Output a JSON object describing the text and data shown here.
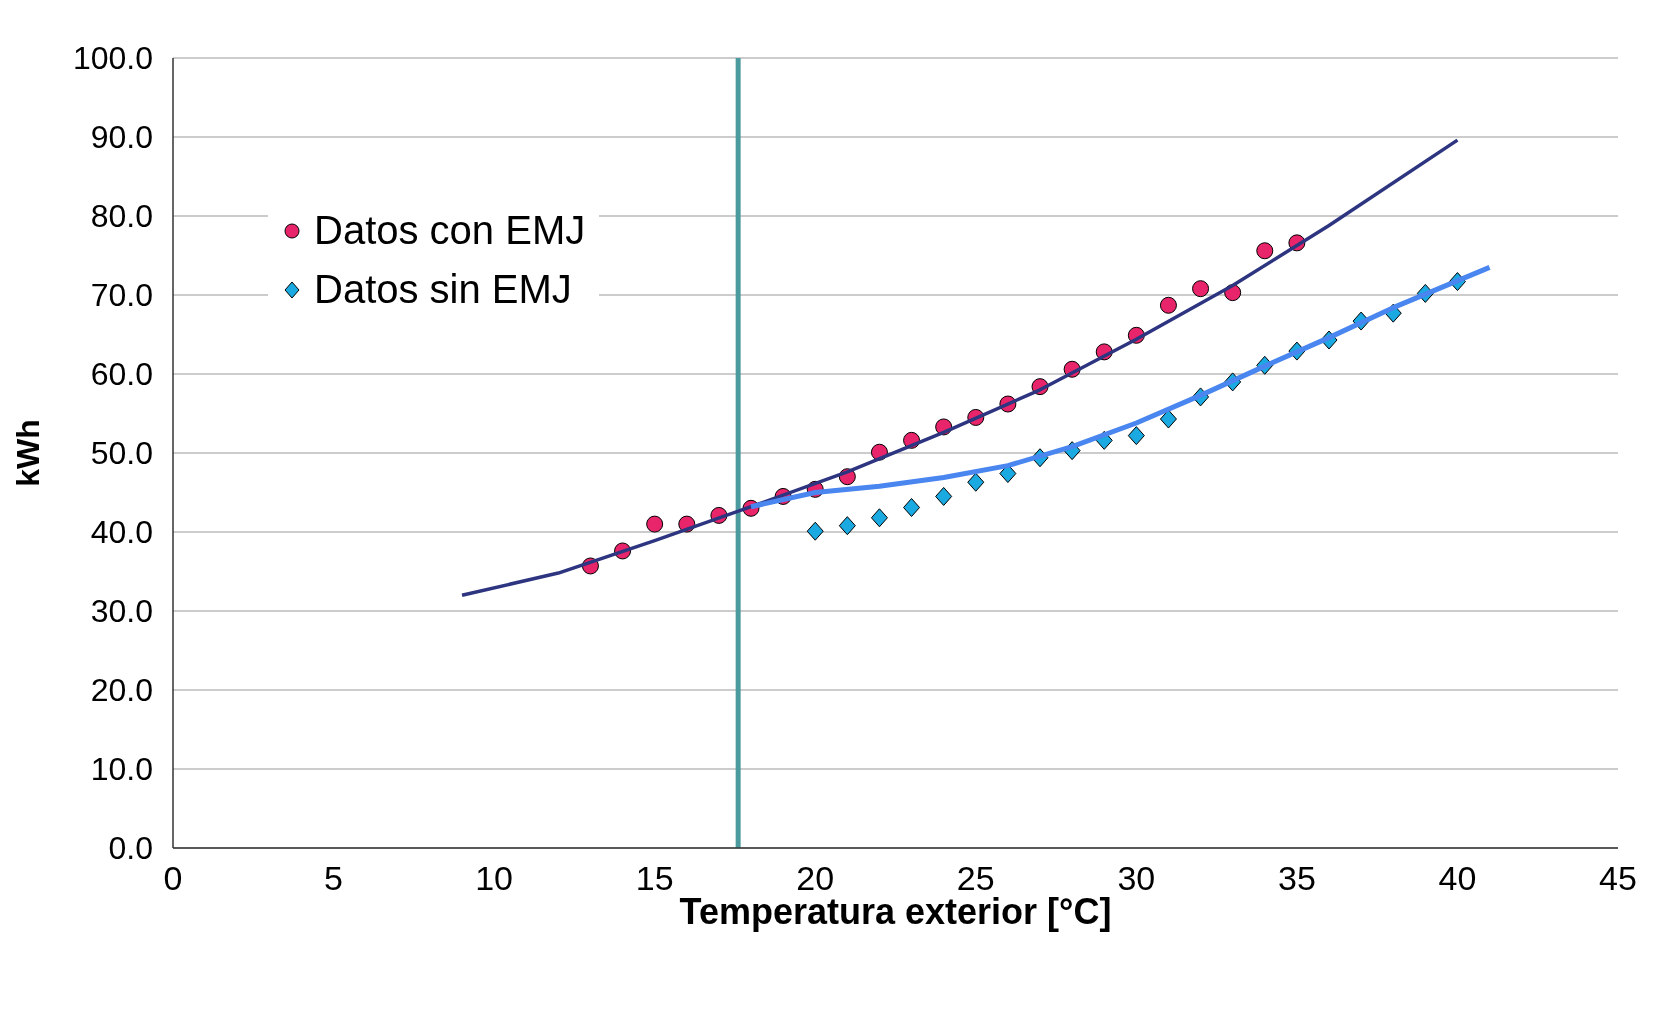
{
  "chart_data": {
    "type": "scatter",
    "xlabel": "Temperatura exterior [°C]",
    "ylabel": "kWh",
    "xlim": [
      0,
      45
    ],
    "xticks": [
      0,
      5,
      10,
      15,
      20,
      25,
      30,
      35,
      40,
      45
    ],
    "ylim": [
      0,
      100
    ],
    "yticks": [
      {
        "value": 0,
        "label": "0.0"
      },
      {
        "value": 10,
        "label": "10.0"
      },
      {
        "value": 20,
        "label": "20.0"
      },
      {
        "value": 30,
        "label": "30.0"
      },
      {
        "value": 40,
        "label": "40.0"
      },
      {
        "value": 50,
        "label": "50.0"
      },
      {
        "value": 60,
        "label": "60.0"
      },
      {
        "value": 70,
        "label": "70.0"
      },
      {
        "value": 80,
        "label": "80.0"
      },
      {
        "value": 90,
        "label": "90.0"
      },
      {
        "value": 100,
        "label": "100.0"
      }
    ],
    "grid": "y",
    "legend": "top left",
    "ref_lines": [
      {
        "axis": "x",
        "value": 17.6,
        "color": "#4a9a9e"
      }
    ],
    "series": [
      {
        "type": "line",
        "color": "#2e3580",
        "marker": "none",
        "x": [
          9,
          12,
          15,
          18,
          21,
          24,
          27,
          30,
          33,
          36,
          40
        ],
        "values": [
          32.0,
          34.8,
          38.9,
          43.2,
          47.6,
          52.6,
          58.0,
          64.4,
          71.2,
          78.8,
          89.6
        ]
      },
      {
        "type": "line",
        "color": "#4a86f0",
        "marker": "none",
        "x": [
          18,
          20,
          22,
          24,
          26,
          28,
          30,
          32,
          34,
          36,
          38,
          41
        ],
        "values": [
          43.2,
          45.0,
          45.8,
          46.9,
          48.4,
          50.8,
          53.8,
          57.3,
          61.0,
          64.6,
          68.4,
          73.5
        ]
      },
      {
        "name": "Datos con EMJ",
        "color": "#e8246a",
        "marker": "circle",
        "x": [
          13,
          14,
          15,
          16,
          17,
          18,
          19,
          20,
          21,
          22,
          23,
          24,
          25,
          26,
          27,
          28,
          29,
          30,
          31,
          32,
          33,
          34,
          35
        ],
        "values": [
          35.7,
          37.6,
          41.0,
          41.0,
          42.1,
          43.0,
          44.5,
          45.4,
          47.0,
          50.1,
          51.6,
          53.3,
          54.5,
          56.2,
          58.4,
          60.6,
          62.8,
          64.9,
          68.7,
          70.8,
          70.3,
          75.6,
          76.6
        ]
      },
      {
        "name": "Datos sin EMJ",
        "color": "#1aa9e0",
        "marker": "diamond",
        "x": [
          20,
          21,
          22,
          23,
          24,
          25,
          26,
          27,
          28,
          29,
          30,
          31,
          32,
          33,
          34,
          35,
          36,
          37,
          38,
          39,
          40
        ],
        "values": [
          40.1,
          40.8,
          41.8,
          43.1,
          44.5,
          46.3,
          47.4,
          49.4,
          50.3,
          51.6,
          52.2,
          54.3,
          57.1,
          59.0,
          61.1,
          62.9,
          64.3,
          66.7,
          67.7,
          70.2,
          71.7
        ]
      }
    ]
  }
}
